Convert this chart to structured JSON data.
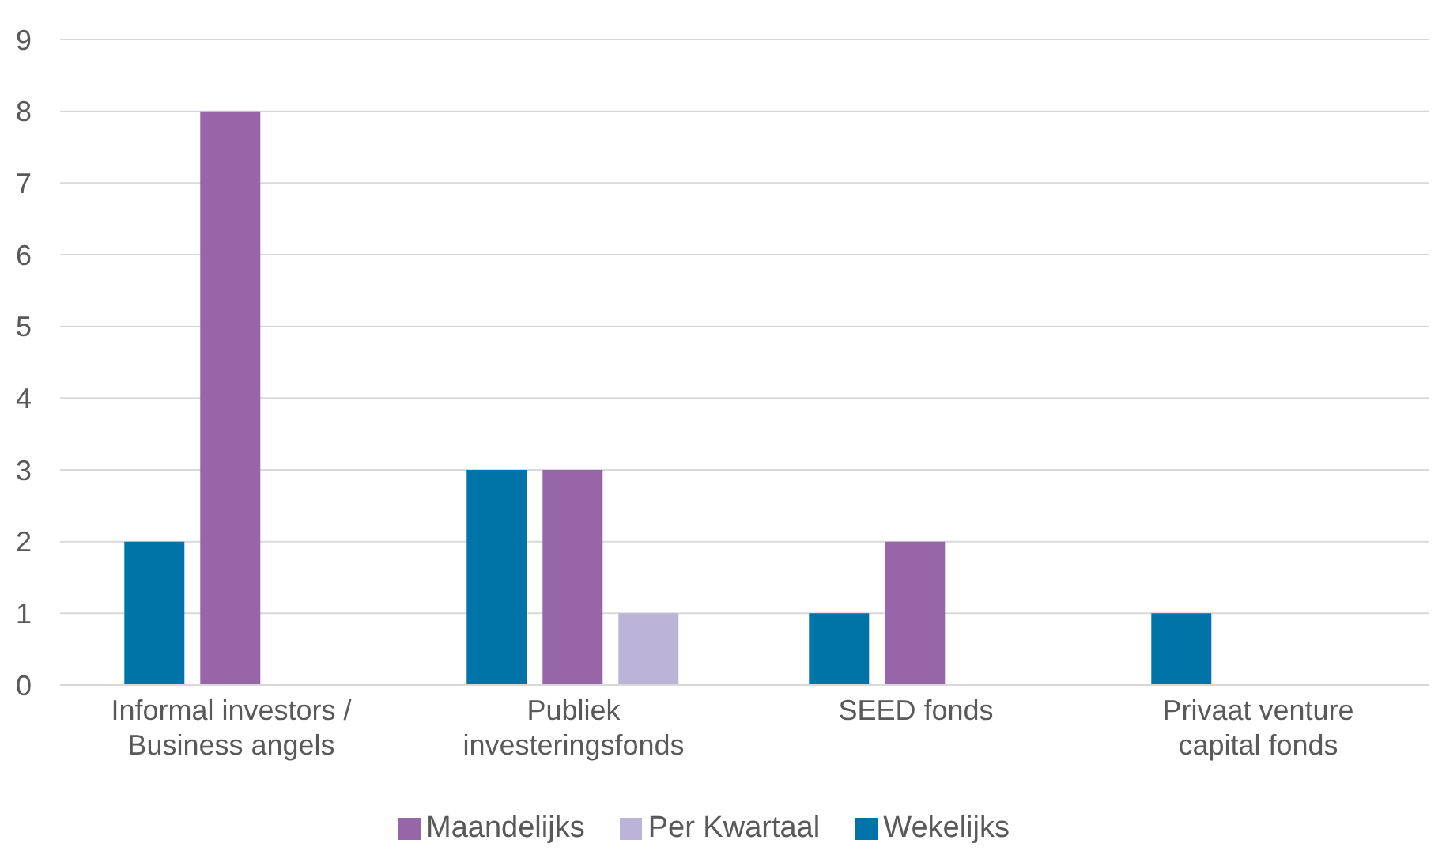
{
  "chart_data": {
    "type": "bar",
    "categories": [
      "Informal investors / Business angels",
      "Publiek investeringsfonds",
      "SEED fonds",
      "Privaat venture capital fonds"
    ],
    "series": [
      {
        "name": "Wekelijks",
        "color": "#0073a8",
        "values": [
          2,
          3,
          1,
          1
        ]
      },
      {
        "name": "Maandelijks",
        "color": "#9866a8",
        "values": [
          8,
          3,
          2,
          0
        ]
      },
      {
        "name": "Per Kwartaal",
        "color": "#bcb3d9",
        "values": [
          0,
          1,
          0,
          0
        ]
      }
    ],
    "ylim": [
      0,
      9
    ],
    "yticks": [
      0,
      1,
      2,
      3,
      4,
      5,
      6,
      7,
      8,
      9
    ],
    "grid": "y",
    "legend": "bottom"
  }
}
